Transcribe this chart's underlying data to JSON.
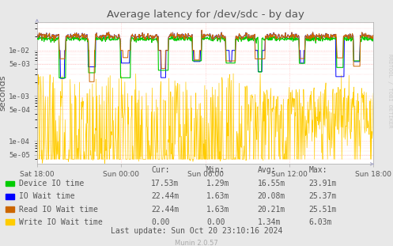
{
  "title": "Average latency for /dev/sdc - by day",
  "ylabel": "seconds",
  "background_color": "#e8e8e8",
  "plot_background": "#ffffff",
  "grid_color_dotted": "#ffaaaa",
  "ylim_min": 3.2e-05,
  "ylim_max": 0.042,
  "x_ticks_labels": [
    "Sat 18:00",
    "Sun 00:00",
    "Sun 06:00",
    "Sun 12:00",
    "Sun 18:00"
  ],
  "ytick_vals": [
    5e-05,
    0.0001,
    0.0005,
    0.001,
    0.005,
    0.01
  ],
  "ytick_labels": [
    "5e-05",
    "1e-04",
    "5e-04",
    "1e-03",
    "5e-03",
    "1e-02"
  ],
  "table_header": [
    "Cur:",
    "Min:",
    "Avg:",
    "Max:"
  ],
  "table_rows": [
    [
      "Device IO time",
      "17.53m",
      "1.29m",
      "16.55m",
      "23.91m"
    ],
    [
      "IO Wait time",
      "22.44m",
      "1.63m",
      "20.08m",
      "25.37m"
    ],
    [
      "Read IO Wait time",
      "22.44m",
      "1.63m",
      "20.21m",
      "25.51m"
    ],
    [
      "Write IO Wait time",
      "0.00",
      "0.00",
      "1.34m",
      "6.03m"
    ]
  ],
  "last_update": "Last update: Sun Oct 20 23:10:16 2024",
  "munin_version": "Munin 2.0.57",
  "rrdtool_label": "RRDTOOL / TOBI OETIKER",
  "title_color": "#555555",
  "label_color": "#555555",
  "grid_label_color": "#555555",
  "watermark_color": "#cccccc",
  "arrow_color": "#aaaacc",
  "color_device": "#00cc00",
  "color_iowait": "#0000ff",
  "color_read": "#cc6600",
  "color_write": "#ffcc00",
  "legend_colors": [
    "#00cc00",
    "#0000ff",
    "#cc6600",
    "#ffcc00"
  ]
}
